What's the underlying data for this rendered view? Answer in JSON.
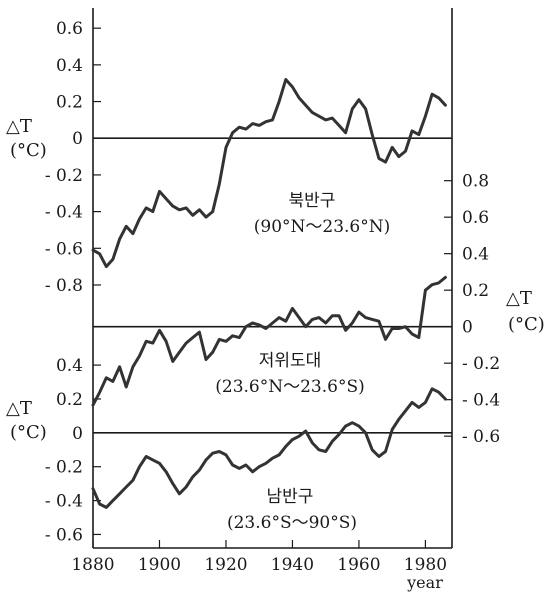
{
  "chart_data": {
    "type": "line",
    "xlabel": "year",
    "x_ticks": [
      1880,
      1900,
      1920,
      1940,
      1960,
      1980
    ],
    "xlim": [
      1880,
      1988
    ],
    "ylabel_left_upper": "△T",
    "ylabel_left_upper_unit": "(°C)",
    "ylabel_left_lower": "△T",
    "ylabel_left_lower_unit": "(°C)",
    "ylabel_right": "△T",
    "ylabel_right_unit": "(°C)",
    "panels": [
      {
        "region_name": "북반구",
        "region_range": "(90°N～23.6°N)",
        "axis": "left",
        "ylim": [
          -0.98,
          0.71
        ],
        "y_ticks": [
          0.6,
          0.4,
          0.2,
          0,
          -0.2,
          -0.4,
          -0.6,
          -0.8
        ],
        "y_tick_labels": [
          "0.6",
          "0.4",
          "0.2",
          "0",
          "- 0.2",
          "- 0.4",
          "- 0.6",
          "- 0.8"
        ],
        "x": [
          1880,
          1882,
          1884,
          1886,
          1888,
          1890,
          1892,
          1894,
          1896,
          1898,
          1900,
          1902,
          1904,
          1906,
          1908,
          1910,
          1912,
          1914,
          1916,
          1918,
          1920,
          1922,
          1924,
          1926,
          1928,
          1930,
          1932,
          1934,
          1936,
          1938,
          1940,
          1942,
          1944,
          1946,
          1948,
          1950,
          1952,
          1954,
          1956,
          1958,
          1960,
          1962,
          1964,
          1966,
          1968,
          1970,
          1972,
          1974,
          1976,
          1978,
          1980,
          1982,
          1984,
          1986
        ],
        "values": [
          -0.61,
          -0.63,
          -0.7,
          -0.66,
          -0.55,
          -0.48,
          -0.52,
          -0.44,
          -0.38,
          -0.4,
          -0.29,
          -0.33,
          -0.37,
          -0.39,
          -0.38,
          -0.42,
          -0.39,
          -0.43,
          -0.4,
          -0.25,
          -0.05,
          0.03,
          0.06,
          0.05,
          0.08,
          0.07,
          0.09,
          0.1,
          0.2,
          0.32,
          0.28,
          0.22,
          0.18,
          0.14,
          0.12,
          0.1,
          0.11,
          0.07,
          0.03,
          0.16,
          0.21,
          0.16,
          0.02,
          -0.11,
          -0.13,
          -0.05,
          -0.1,
          -0.07,
          0.04,
          0.02,
          0.12,
          0.24,
          0.22,
          0.18
        ]
      },
      {
        "region_name": "저위도대",
        "region_range": "(23.6°N～23.6°S)",
        "axis": "right",
        "ylim": [
          -0.61,
          0.99
        ],
        "y_ticks": [
          0.8,
          0.6,
          0.4,
          0.2,
          0,
          -0.2,
          -0.4,
          -0.6
        ],
        "y_tick_labels": [
          "0.8",
          "0.6",
          "0.4",
          "0.2",
          "0",
          "- 0.2",
          "- 0.4",
          "- 0.6"
        ],
        "x": [
          1880,
          1882,
          1884,
          1886,
          1888,
          1890,
          1892,
          1894,
          1896,
          1898,
          1900,
          1902,
          1904,
          1906,
          1908,
          1910,
          1912,
          1914,
          1916,
          1918,
          1920,
          1922,
          1924,
          1926,
          1928,
          1930,
          1932,
          1934,
          1936,
          1938,
          1940,
          1942,
          1944,
          1946,
          1948,
          1950,
          1952,
          1954,
          1956,
          1958,
          1960,
          1962,
          1964,
          1966,
          1968,
          1970,
          1972,
          1974,
          1976,
          1978,
          1980,
          1982,
          1984,
          1986
        ],
        "values": [
          -0.43,
          -0.36,
          -0.28,
          -0.3,
          -0.22,
          -0.33,
          -0.22,
          -0.16,
          -0.08,
          -0.09,
          -0.02,
          -0.08,
          -0.19,
          -0.14,
          -0.09,
          -0.06,
          -0.03,
          -0.18,
          -0.14,
          -0.07,
          -0.08,
          -0.05,
          -0.06,
          0.0,
          0.02,
          0.01,
          -0.01,
          0.02,
          0.05,
          0.03,
          0.1,
          0.05,
          0.0,
          0.04,
          0.05,
          0.02,
          0.06,
          0.06,
          -0.02,
          0.02,
          0.08,
          0.05,
          0.04,
          0.03,
          -0.07,
          -0.01,
          -0.01,
          0.0,
          -0.04,
          -0.06,
          0.2,
          0.23,
          0.24,
          0.27
        ]
      },
      {
        "region_name": "남반구",
        "region_range": "(23.6°S～90°S)",
        "axis": "left",
        "ylim": [
          -0.68,
          0.56
        ],
        "y_ticks": [
          0.4,
          0.2,
          0,
          -0.2,
          -0.4,
          -0.6
        ],
        "y_tick_labels": [
          "0.4",
          "0.2",
          "0",
          "- 0.2",
          "- 0.4",
          "- 0.6"
        ],
        "x": [
          1880,
          1882,
          1884,
          1886,
          1888,
          1890,
          1892,
          1894,
          1896,
          1898,
          1900,
          1902,
          1904,
          1906,
          1908,
          1910,
          1912,
          1914,
          1916,
          1918,
          1920,
          1922,
          1924,
          1926,
          1928,
          1930,
          1932,
          1934,
          1936,
          1938,
          1940,
          1942,
          1944,
          1946,
          1948,
          1950,
          1952,
          1954,
          1956,
          1958,
          1960,
          1962,
          1964,
          1966,
          1968,
          1970,
          1972,
          1974,
          1976,
          1978,
          1980,
          1982,
          1984,
          1986
        ],
        "values": [
          -0.33,
          -0.42,
          -0.44,
          -0.4,
          -0.36,
          -0.32,
          -0.28,
          -0.2,
          -0.14,
          -0.16,
          -0.18,
          -0.23,
          -0.3,
          -0.36,
          -0.32,
          -0.26,
          -0.22,
          -0.16,
          -0.12,
          -0.11,
          -0.13,
          -0.19,
          -0.21,
          -0.19,
          -0.23,
          -0.2,
          -0.18,
          -0.15,
          -0.13,
          -0.08,
          -0.04,
          -0.02,
          0.01,
          -0.06,
          -0.1,
          -0.11,
          -0.05,
          -0.01,
          0.04,
          0.06,
          0.04,
          0.0,
          -0.1,
          -0.14,
          -0.11,
          0.02,
          0.08,
          0.13,
          0.18,
          0.15,
          0.18,
          0.26,
          0.24,
          0.2
        ]
      }
    ]
  }
}
